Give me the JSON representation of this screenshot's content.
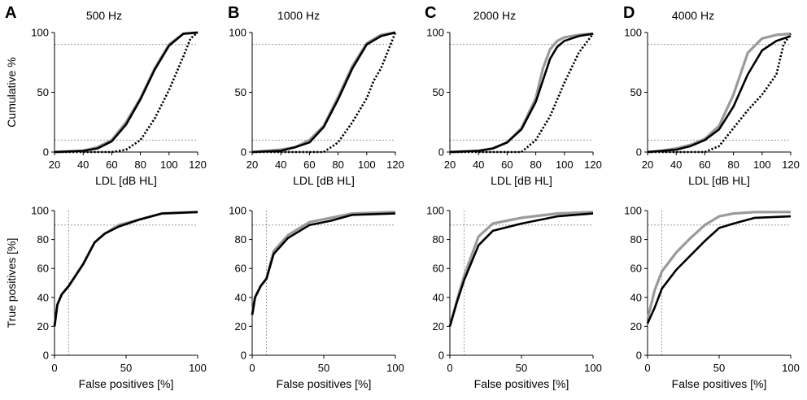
{
  "chart_data": [
    {
      "type": "line",
      "panel": "A",
      "title": "500 Hz",
      "top": {
        "xlabel": "LDL [dB HL]",
        "ylabel": "Cumulative %",
        "xlim": [
          20,
          120
        ],
        "ylim": [
          0,
          100
        ],
        "xticks": [
          "20",
          "40",
          "60",
          "80",
          "100",
          "120"
        ],
        "yticks": [
          "0",
          "50",
          "100"
        ],
        "ref_lines_y": [
          10,
          90
        ],
        "series": [
          {
            "name": "gray",
            "x": [
              20,
              40,
              50,
              60,
              70,
              80,
              90,
              100,
              110,
              120
            ],
            "y": [
              0,
              1,
              4,
              10,
              25,
              45,
              70,
              90,
              99,
              100
            ]
          },
          {
            "name": "black",
            "x": [
              20,
              40,
              50,
              60,
              70,
              80,
              90,
              100,
              110,
              120
            ],
            "y": [
              0,
              1,
              3,
              9,
              23,
              44,
              69,
              89,
              99,
              100
            ]
          },
          {
            "name": "dotted",
            "x": [
              20,
              60,
              70,
              80,
              90,
              100,
              110,
              115,
              120
            ],
            "y": [
              0,
              0,
              2,
              10,
              28,
              52,
              80,
              95,
              100
            ]
          }
        ]
      },
      "bottom": {
        "xlabel": "False positives [%]",
        "ylabel": "True positives [%]",
        "xlim": [
          0,
          100
        ],
        "ylim": [
          0,
          100
        ],
        "xticks": [
          "0",
          "50",
          "100"
        ],
        "yticks": [
          "0",
          "20",
          "40",
          "60",
          "80",
          "100"
        ],
        "ref_lines": {
          "x": 10,
          "y": 90
        },
        "series": [
          {
            "name": "gray",
            "x": [
              0,
              2,
              5,
              10,
              20,
              28,
              35,
              45,
              60,
              75,
              100
            ],
            "y": [
              20,
              35,
              42,
              48,
              63,
              78,
              84,
              90,
              94,
              98,
              99
            ]
          },
          {
            "name": "black",
            "x": [
              0,
              2,
              5,
              10,
              20,
              28,
              35,
              45,
              60,
              75,
              100
            ],
            "y": [
              20,
              35,
              42,
              48,
              63,
              78,
              84,
              89,
              94,
              98,
              99
            ]
          }
        ]
      }
    },
    {
      "type": "line",
      "panel": "B",
      "title": "1000 Hz",
      "top": {
        "xlabel": "LDL [dB HL]",
        "ylabel": "",
        "xlim": [
          20,
          120
        ],
        "ylim": [
          0,
          100
        ],
        "xticks": [
          "20",
          "40",
          "60",
          "80",
          "100",
          "120"
        ],
        "yticks": [
          "0",
          "50",
          "100"
        ],
        "ref_lines_y": [
          10,
          90
        ],
        "series": [
          {
            "name": "gray",
            "x": [
              20,
              40,
              50,
              60,
              70,
              80,
              90,
              100,
              110,
              120
            ],
            "y": [
              0,
              2,
              4,
              10,
              22,
              46,
              72,
              91,
              98,
              100
            ]
          },
          {
            "name": "black",
            "x": [
              20,
              40,
              50,
              60,
              70,
              80,
              90,
              100,
              110,
              120
            ],
            "y": [
              0,
              1,
              4,
              8,
              21,
              44,
              70,
              90,
              97,
              100
            ]
          },
          {
            "name": "dotted",
            "x": [
              20,
              70,
              80,
              90,
              100,
              105,
              110,
              115,
              120
            ],
            "y": [
              0,
              0,
              8,
              25,
              45,
              60,
              70,
              85,
              100
            ]
          }
        ]
      },
      "bottom": {
        "xlabel": "False positives [%]",
        "ylabel": "",
        "xlim": [
          0,
          100
        ],
        "ylim": [
          0,
          100
        ],
        "xticks": [
          "0",
          "50",
          "100"
        ],
        "yticks": [
          "0",
          "20",
          "40",
          "60",
          "80",
          "100"
        ],
        "ref_lines": {
          "x": 10,
          "y": 90
        },
        "series": [
          {
            "name": "gray",
            "x": [
              0,
              2,
              6,
              10,
              15,
              25,
              40,
              55,
              70,
              100
            ],
            "y": [
              28,
              40,
              48,
              53,
              72,
              83,
              92,
              95,
              98,
              99
            ]
          },
          {
            "name": "black",
            "x": [
              0,
              2,
              6,
              10,
              15,
              25,
              40,
              55,
              70,
              100
            ],
            "y": [
              28,
              40,
              48,
              53,
              70,
              81,
              90,
              93,
              97,
              98
            ]
          }
        ]
      }
    },
    {
      "type": "line",
      "panel": "C",
      "title": "2000 Hz",
      "top": {
        "xlabel": "LDL [dB HL]",
        "ylabel": "",
        "xlim": [
          20,
          120
        ],
        "ylim": [
          0,
          100
        ],
        "xticks": [
          "20",
          "40",
          "60",
          "80",
          "100",
          "120"
        ],
        "yticks": [
          "0",
          "50",
          "100"
        ],
        "ref_lines_y": [
          10,
          90
        ],
        "series": [
          {
            "name": "gray",
            "x": [
              20,
              40,
              50,
              60,
              70,
              80,
              85,
              90,
              95,
              100,
              110,
              120
            ],
            "y": [
              0,
              1,
              3,
              8,
              20,
              45,
              70,
              86,
              93,
              96,
              98,
              99
            ]
          },
          {
            "name": "black",
            "x": [
              20,
              40,
              50,
              60,
              70,
              80,
              85,
              90,
              95,
              100,
              110,
              120
            ],
            "y": [
              0,
              1,
              3,
              8,
              19,
              42,
              60,
              78,
              88,
              93,
              97,
              99
            ]
          },
          {
            "name": "dotted",
            "x": [
              20,
              70,
              80,
              90,
              100,
              110,
              120
            ],
            "y": [
              0,
              0,
              10,
              30,
              58,
              83,
              99
            ]
          }
        ]
      },
      "bottom": {
        "xlabel": "False positives [%]",
        "ylabel": "",
        "xlim": [
          0,
          100
        ],
        "ylim": [
          0,
          100
        ],
        "xticks": [
          "0",
          "50",
          "100"
        ],
        "yticks": [
          "0",
          "20",
          "40",
          "60",
          "80",
          "100"
        ],
        "ref_lines": {
          "x": 10,
          "y": 90
        },
        "series": [
          {
            "name": "gray",
            "x": [
              0,
              5,
              10,
              20,
              30,
              50,
              75,
              100
            ],
            "y": [
              20,
              38,
              55,
              82,
              91,
              95,
              98,
              99
            ]
          },
          {
            "name": "black",
            "x": [
              0,
              5,
              10,
              20,
              30,
              50,
              75,
              100
            ],
            "y": [
              20,
              37,
              52,
              76,
              86,
              91,
              96,
              98
            ]
          }
        ]
      }
    },
    {
      "type": "line",
      "panel": "D",
      "title": "4000 Hz",
      "top": {
        "xlabel": "LDL [dB HL]",
        "ylabel": "",
        "xlim": [
          20,
          120
        ],
        "ylim": [
          0,
          100
        ],
        "xticks": [
          "20",
          "40",
          "60",
          "80",
          "100",
          "120"
        ],
        "yticks": [
          "0",
          "50",
          "100"
        ],
        "ref_lines_y": [
          10,
          90
        ],
        "series": [
          {
            "name": "gray",
            "x": [
              20,
              30,
              40,
              50,
              60,
              70,
              80,
              90,
              100,
              110,
              120
            ],
            "y": [
              0,
              1,
              3,
              6,
              11,
              22,
              48,
              83,
              95,
              98,
              99
            ]
          },
          {
            "name": "black",
            "x": [
              20,
              30,
              40,
              50,
              60,
              70,
              80,
              90,
              100,
              110,
              120
            ],
            "y": [
              0,
              1,
              2,
              5,
              10,
              19,
              38,
              65,
              85,
              93,
              97
            ]
          },
          {
            "name": "dotted",
            "x": [
              20,
              60,
              70,
              80,
              90,
              100,
              110,
              115,
              120
            ],
            "y": [
              0,
              0,
              5,
              20,
              35,
              48,
              65,
              90,
              99
            ]
          }
        ]
      },
      "bottom": {
        "xlabel": "False positives [%]",
        "ylabel": "",
        "xlim": [
          0,
          100
        ],
        "ylim": [
          0,
          100
        ],
        "xticks": [
          "0",
          "50",
          "100"
        ],
        "yticks": [
          "0",
          "20",
          "40",
          "60",
          "80",
          "100"
        ],
        "ref_lines": {
          "x": 10,
          "y": 90
        },
        "series": [
          {
            "name": "gray",
            "x": [
              0,
              5,
              10,
              20,
              30,
              40,
              50,
              60,
              75,
              100
            ],
            "y": [
              25,
              45,
              58,
              71,
              81,
              90,
              96,
              98,
              99,
              99
            ]
          },
          {
            "name": "black",
            "x": [
              0,
              5,
              10,
              20,
              30,
              40,
              50,
              60,
              75,
              100
            ],
            "y": [
              22,
              33,
              46,
              59,
              69,
              79,
              88,
              91,
              95,
              96
            ]
          }
        ]
      }
    }
  ]
}
